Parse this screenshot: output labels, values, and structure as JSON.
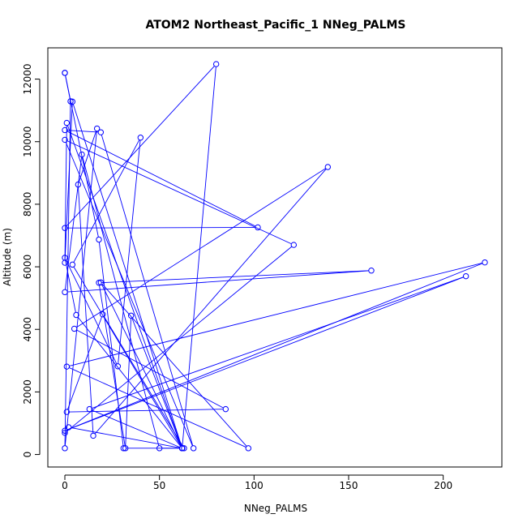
{
  "chart_data": {
    "type": "line",
    "title": "ATOM2 Northeast_Pacific_1 NNeg_PALMS",
    "xlabel": "NNeg_PALMS",
    "ylabel": "Altitude (m)",
    "xlim": [
      -9,
      231
    ],
    "ylim": [
      -400,
      13000
    ],
    "xticks": [
      0,
      50,
      100,
      150,
      200
    ],
    "yticks": [
      0,
      2000,
      4000,
      6000,
      8000,
      10000,
      12000
    ],
    "grid": false,
    "legend": "none",
    "series": [
      {
        "color": "#0000ff",
        "marker": "open-circle",
        "x": [
          0,
          18,
          31,
          62,
          80,
          0,
          102,
          0,
          19,
          68,
          0,
          121,
          0,
          2,
          62,
          4,
          0,
          1,
          62,
          4,
          40,
          28,
          0,
          6,
          62,
          19,
          97,
          1,
          222,
          0,
          212,
          13,
          62,
          50,
          9,
          0,
          162,
          18,
          32,
          35,
          62,
          63,
          20,
          1,
          85,
          5,
          139,
          15,
          7,
          17,
          0,
          3,
          0
        ],
        "y": [
          12200,
          6870,
          200,
          200,
          12480,
          7240,
          7260,
          10370,
          10300,
          200,
          10060,
          6700,
          690,
          870,
          200,
          11280,
          6130,
          10600,
          200,
          6070,
          10130,
          2820,
          6290,
          4460,
          200,
          5500,
          200,
          2810,
          6140,
          760,
          5700,
          1450,
          200,
          200,
          9590,
          5190,
          5880,
          5490,
          200,
          4440,
          200,
          200,
          4480,
          1360,
          1450,
          4020,
          9190,
          600,
          8630,
          10420,
          200,
          11290,
          12200
        ]
      }
    ]
  }
}
